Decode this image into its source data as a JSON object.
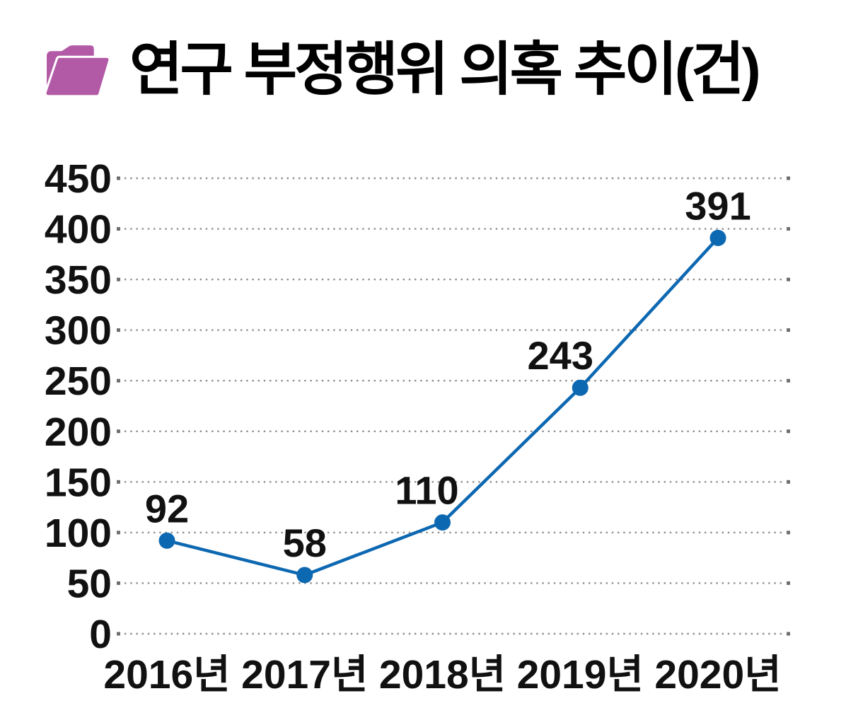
{
  "header": {
    "title": "연구 부정행위 의혹 추이(건)",
    "icon": "open-folder-icon",
    "icon_color": "#b25aa6"
  },
  "chart_data": {
    "type": "line",
    "title": "연구 부정행위 의혹 추이(건)",
    "categories": [
      "2016년",
      "2017년",
      "2018년",
      "2019년",
      "2020년"
    ],
    "values": [
      92,
      58,
      110,
      243,
      391
    ],
    "data_labels": [
      "92",
      "58",
      "110",
      "243",
      "391"
    ],
    "xlabel": "",
    "ylabel": "",
    "ylim": [
      0,
      450
    ],
    "yticks": [
      0,
      50,
      100,
      150,
      200,
      250,
      300,
      350,
      400,
      450
    ],
    "grid": "horizontal-dotted",
    "legend": "none",
    "marker": "circle",
    "colors": {
      "line": "#0d68b2",
      "marker": "#0d68b2",
      "grid": "#8e8e8e",
      "tick_mark": "#6e6e6e",
      "text": "#111111"
    }
  }
}
